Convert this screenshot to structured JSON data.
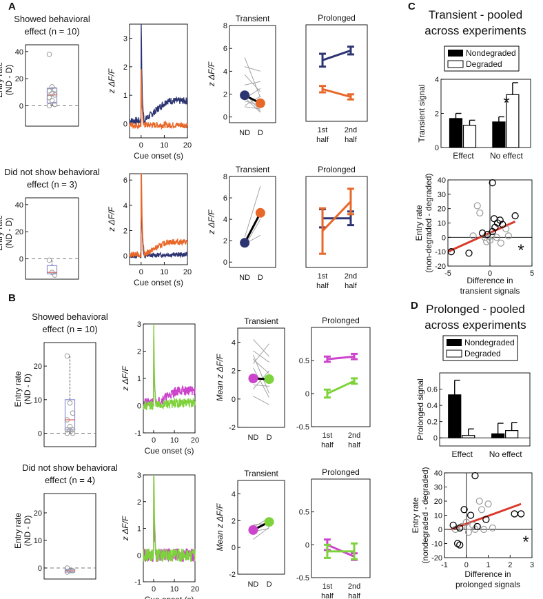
{
  "colors": {
    "navy": "#2c3572",
    "orange": "#e8682a",
    "magenta": "#cc44cc",
    "green": "#7ed23b",
    "gray": "#999999",
    "black": "#000000",
    "red": "#d93a2b",
    "box": "#8a8fd6"
  },
  "panels": {
    "A": "A",
    "B": "B",
    "C": "C",
    "D": "D"
  },
  "labels": {
    "showed": "Showed behavioral",
    "not_showed": "Did not show behavioral",
    "effect_n10": "effect (n = 10)",
    "effect_n3": "effect (n = 3)",
    "effect_n4": "effect (n = 4)",
    "entry_rate": "Entry rate",
    "nd_d": "(ND - D)",
    "z_dff": "z  ΔF/F",
    "mean_z_dff": "Mean z  ΔF/F",
    "cue_onset": "Cue onset (s)",
    "transient": "Transient",
    "prolonged": "Prolonged",
    "nd": "ND",
    "d": "D",
    "first": "1st",
    "second": "2nd",
    "half": "half",
    "nondegraded": "Nondegraded",
    "degraded": "Degraded",
    "transient_signal": "Transient signal",
    "prolonged_signal": "Prolonged signal",
    "effect": "Effect",
    "no_effect": "No effect",
    "entry_rate_c": "Entry rate",
    "entry_rate_c2": "(non-degraded - degraded)",
    "entry_rate_d2": "(nondegraded - degraded)",
    "diff_transient_1": "Difference in",
    "diff_transient_2": "transient signals",
    "diff_prolonged_1": "Difference in",
    "diff_prolonged_2": "prolonged signals",
    "star": "*",
    "c_title_1": "Transient - pooled",
    "c_title_2": "across experiments",
    "d_title_1": "Prolonged - pooled",
    "d_title_2": "across experiments"
  },
  "chart_data": [
    {
      "id": "A1-box",
      "type": "box",
      "title": "Showed behavioral effect (n = 10)",
      "ylabel": "Entry rate (ND - D)",
      "ylim": [
        -15,
        45
      ],
      "yticks": [
        0,
        20,
        40
      ],
      "box": {
        "q1": 2,
        "median": 8,
        "q3": 13,
        "min": 0,
        "max": 14
      },
      "points": [
        38,
        14,
        12,
        11,
        9,
        8,
        6,
        4,
        1,
        0
      ]
    },
    {
      "id": "A1-trace",
      "type": "line",
      "xlabel": "Cue onset (s)",
      "ylabel": "z  ΔF/F",
      "xlim": [
        -5,
        20
      ],
      "ylim": [
        -0.5,
        3.5
      ],
      "xticks": [
        0,
        10,
        20
      ],
      "yticks": [
        0,
        1,
        2,
        3
      ],
      "series": [
        {
          "name": "ND",
          "color": "navy"
        },
        {
          "name": "D",
          "color": "orange"
        }
      ]
    },
    {
      "id": "A1-trans",
      "type": "paired",
      "title": "Transient",
      "ylabel": "z  ΔF/F",
      "ylim": [
        -0.5,
        8
      ],
      "yticks": [
        0,
        2,
        4,
        6,
        8
      ],
      "categories": [
        "ND",
        "D"
      ],
      "means": [
        1.9,
        1.2
      ],
      "pairs": [
        [
          5.2,
          1.7
        ],
        [
          4.4,
          4.0
        ],
        [
          3.7,
          2.2
        ],
        [
          2.8,
          3.1
        ],
        [
          2.1,
          0.5
        ],
        [
          1.7,
          0.4
        ],
        [
          1.4,
          1.0
        ],
        [
          1.0,
          1.8
        ],
        [
          0.9,
          0.7
        ],
        [
          1.6,
          2.5
        ]
      ]
    },
    {
      "id": "A1-prol",
      "type": "errorline",
      "title": "Prolonged",
      "ylim": [
        -0.5,
        1.0
      ],
      "categories": [
        "1st half",
        "2nd half"
      ],
      "series": [
        {
          "name": "ND",
          "color": "navy",
          "values": [
            0.45,
            0.6
          ],
          "err": [
            0.1,
            0.06
          ]
        },
        {
          "name": "D",
          "color": "orange",
          "values": [
            0.0,
            -0.12
          ],
          "err": [
            0.05,
            0.04
          ]
        }
      ]
    },
    {
      "id": "A2-box",
      "type": "box",
      "title": "Did not show behavioral effect (n = 3)",
      "ylabel": "Entry rate (ND - D)",
      "ylim": [
        -15,
        45
      ],
      "yticks": [
        0,
        20,
        40
      ],
      "box": {
        "q1": -11,
        "median": -10,
        "q3": -5,
        "min": -12,
        "max": -1
      },
      "points": [
        -1,
        -10,
        -12
      ]
    },
    {
      "id": "A2-trace",
      "type": "line",
      "xlabel": "Cue onset (s)",
      "ylabel": "z  ΔF/F",
      "xlim": [
        -5,
        20
      ],
      "ylim": [
        -0.7,
        6.5
      ],
      "xticks": [
        0,
        10,
        20
      ],
      "yticks": [
        0,
        2,
        4,
        6
      ]
    },
    {
      "id": "A2-trans",
      "type": "paired",
      "title": "Transient",
      "ylabel": "z  ΔF/F",
      "ylim": [
        -0.5,
        8
      ],
      "yticks": [
        0,
        2,
        4,
        6,
        8
      ],
      "categories": [
        "ND",
        "D"
      ],
      "means": [
        1.8,
        4.6
      ],
      "pairs": [
        [
          2.3,
          7.1
        ],
        [
          1.5,
          4.0
        ],
        [
          1.7,
          2.5
        ]
      ]
    },
    {
      "id": "A2-prol",
      "type": "errorline",
      "title": "Prolonged",
      "ylim": [
        -0.8,
        1.2
      ],
      "categories": [
        "1st half",
        "2nd half"
      ],
      "series": [
        {
          "name": "ND",
          "color": "navy",
          "values": [
            0.28,
            0.28
          ],
          "err": [
            0.2,
            0.15
          ]
        },
        {
          "name": "D",
          "color": "orange",
          "values": [
            0.0,
            0.65
          ],
          "err": [
            0.5,
            0.28
          ]
        }
      ]
    },
    {
      "id": "B1-box",
      "type": "box",
      "title": "Showed behavioral effect (n = 10)",
      "ylabel": "Entry rate (ND - D)",
      "ylim": [
        -4,
        27
      ],
      "yticks": [
        0,
        10,
        20
      ],
      "box": {
        "q1": 1,
        "median": 4,
        "q3": 10,
        "min": 0,
        "max": 23
      },
      "points": [
        23,
        9,
        6,
        4,
        2,
        1,
        1,
        1,
        0,
        0
      ]
    },
    {
      "id": "B1-trace",
      "type": "line",
      "xlabel": "Cue onset (s)",
      "ylabel": "z  ΔF/F",
      "xlim": [
        -5,
        20
      ],
      "ylim": [
        -1,
        3
      ],
      "xticks": [
        0,
        10,
        20
      ],
      "yticks": [
        -1,
        0,
        1,
        2,
        3
      ],
      "series": [
        {
          "name": "ND",
          "color": "magenta"
        },
        {
          "name": "D",
          "color": "green"
        }
      ]
    },
    {
      "id": "B1-trans",
      "type": "paired",
      "title": "Transient",
      "ylabel": "Mean z  ΔF/F",
      "ylim": [
        -2,
        5
      ],
      "yticks": [
        -2,
        0,
        2,
        4
      ],
      "categories": [
        "ND",
        "D"
      ],
      "means": [
        1.45,
        1.4
      ],
      "pairs": [
        [
          4.2,
          3.0
        ],
        [
          3.4,
          2.6
        ],
        [
          2.8,
          1.8
        ],
        [
          2.5,
          3.9
        ],
        [
          2.2,
          0.1
        ],
        [
          1.6,
          1.2
        ],
        [
          1.0,
          0.9
        ],
        [
          0.7,
          2.0
        ],
        [
          0.2,
          -0.4
        ],
        [
          3.1,
          0.4
        ]
      ]
    },
    {
      "id": "B1-prol",
      "type": "errorline",
      "title": "Prolonged",
      "ylim": [
        -0.5,
        1.0
      ],
      "yticks": [
        -0.5,
        0,
        0.5
      ],
      "categories": [
        "1st half",
        "2nd half"
      ],
      "series": [
        {
          "name": "ND",
          "color": "magenta",
          "values": [
            0.52,
            0.56
          ],
          "err": [
            0.04,
            0.04
          ]
        },
        {
          "name": "D",
          "color": "green",
          "values": [
            0.0,
            0.19
          ],
          "err": [
            0.06,
            0.04
          ]
        }
      ]
    },
    {
      "id": "B2-box",
      "type": "box",
      "title": "Did not show behavioral effect (n = 4)",
      "ylabel": "Entry rate (ND - D)",
      "ylim": [
        -4,
        27
      ],
      "yticks": [
        0,
        10,
        20
      ],
      "box": {
        "q1": -1.5,
        "median": -1,
        "q3": -0.5,
        "min": -1.5,
        "max": 0
      },
      "points": [
        0,
        -1,
        -1,
        -1.5
      ]
    },
    {
      "id": "B2-trace",
      "type": "line",
      "xlabel": "Cue onset (s)",
      "ylabel": "z  ΔF/F",
      "xlim": [
        -5,
        20
      ],
      "ylim": [
        -1,
        3
      ],
      "xticks": [
        0,
        10,
        20
      ],
      "yticks": [
        -1,
        0,
        1,
        2,
        3
      ]
    },
    {
      "id": "B2-trans",
      "type": "paired",
      "title": "Transient",
      "ylabel": "Mean z  ΔF/F",
      "ylim": [
        -2,
        5
      ],
      "yticks": [
        -2,
        0,
        2,
        4
      ],
      "categories": [
        "ND",
        "D"
      ],
      "means": [
        1.3,
        1.9
      ],
      "pairs": [
        [
          1.5,
          2.2
        ],
        [
          0.6,
          1.5
        ],
        [
          1.7,
          1.8
        ],
        [
          1.2,
          1.4
        ]
      ]
    },
    {
      "id": "B2-prol",
      "type": "errorline",
      "title": "Prolonged",
      "ylim": [
        -0.5,
        1.0
      ],
      "yticks": [
        -0.5,
        0,
        0.5
      ],
      "categories": [
        "1st half",
        "2nd half"
      ],
      "series": [
        {
          "name": "ND",
          "color": "magenta",
          "values": [
            0.0,
            -0.18
          ],
          "err": [
            0.08,
            0.05
          ]
        },
        {
          "name": "D",
          "color": "green",
          "values": [
            -0.1,
            -0.1
          ],
          "err": [
            0.1,
            0.12
          ]
        }
      ]
    },
    {
      "id": "C-bar",
      "type": "bar",
      "ylabel": "Transient signal",
      "ylim": [
        0,
        4
      ],
      "yticks": [
        0,
        2,
        4
      ],
      "categories": [
        "Effect",
        "No effect"
      ],
      "series": [
        {
          "name": "Nondegraded",
          "values": [
            1.7,
            1.5
          ],
          "err": [
            0.3,
            0.3
          ]
        },
        {
          "name": "Degraded",
          "values": [
            1.3,
            3.1
          ],
          "err": [
            0.3,
            0.7
          ]
        }
      ]
    },
    {
      "id": "C-scatter",
      "type": "scatter",
      "xlabel": "Difference in transient signals",
      "ylabel": "Entry rate (non-degraded - degraded)",
      "xlim": [
        -5,
        5
      ],
      "ylim": [
        -20,
        40
      ],
      "xticks": [
        -5,
        0,
        5
      ],
      "yticks": [
        -20,
        -10,
        0,
        10,
        20,
        30,
        40
      ],
      "fit": {
        "x": [
          -5,
          3
        ],
        "y": [
          -10,
          11
        ]
      },
      "black": [
        [
          0.3,
          38
        ],
        [
          -4.6,
          -10
        ],
        [
          -2.5,
          -11
        ],
        [
          -0.9,
          3
        ],
        [
          -0.3,
          2
        ],
        [
          0.3,
          4
        ],
        [
          0.6,
          7
        ],
        [
          0.9,
          10
        ],
        [
          1.2,
          12
        ],
        [
          1.5,
          9
        ],
        [
          3.0,
          15
        ],
        [
          0.5,
          13
        ]
      ],
      "gray": [
        [
          -1.5,
          22
        ],
        [
          -1.2,
          17
        ],
        [
          -2.0,
          1
        ],
        [
          -0.4,
          -3
        ],
        [
          -0.6,
          0
        ],
        [
          0.2,
          1
        ],
        [
          0.8,
          0
        ],
        [
          1.9,
          6
        ],
        [
          2.2,
          1
        ],
        [
          1.3,
          -4
        ],
        [
          0.0,
          -2
        ]
      ]
    },
    {
      "id": "D-bar",
      "type": "bar",
      "ylabel": "Prolonged signal",
      "ylim": [
        -0.1,
        0.8
      ],
      "yticks": [
        0,
        0.2,
        0.4,
        0.6
      ],
      "categories": [
        "Effect",
        "No effect"
      ],
      "series": [
        {
          "name": "Nondegraded",
          "values": [
            0.53,
            0.05
          ],
          "err": [
            0.18,
            0.13
          ]
        },
        {
          "name": "Degraded",
          "values": [
            0.03,
            0.09
          ],
          "err": [
            0.08,
            0.1
          ]
        }
      ]
    },
    {
      "id": "D-scatter",
      "type": "scatter",
      "xlabel": "Difference in prolonged signals",
      "ylabel": "Entry rate (nondegraded - degraded)",
      "xlim": [
        -1,
        3
      ],
      "ylim": [
        -20,
        40
      ],
      "xticks": [
        -1,
        0,
        1,
        2,
        3
      ],
      "yticks": [
        -20,
        -10,
        0,
        10,
        20,
        30,
        40
      ],
      "fit": {
        "x": [
          -0.7,
          2.5
        ],
        "y": [
          0,
          18
        ]
      },
      "black": [
        [
          -0.6,
          3
        ],
        [
          -0.4,
          -10
        ],
        [
          -0.3,
          -11
        ],
        [
          -0.1,
          14
        ],
        [
          0.2,
          10
        ],
        [
          0.4,
          38
        ],
        [
          0.5,
          2
        ],
        [
          0.9,
          7
        ],
        [
          2.2,
          11
        ],
        [
          2.5,
          11
        ],
        [
          -0.3,
          1
        ]
      ],
      "gray": [
        [
          -0.5,
          0
        ],
        [
          -0.2,
          2
        ],
        [
          0.0,
          5
        ],
        [
          0.1,
          -2
        ],
        [
          0.3,
          3
        ],
        [
          0.6,
          20
        ],
        [
          0.7,
          14
        ],
        [
          1.0,
          18
        ],
        [
          1.2,
          1
        ],
        [
          0.8,
          0
        ],
        [
          0.4,
          0
        ]
      ]
    }
  ]
}
